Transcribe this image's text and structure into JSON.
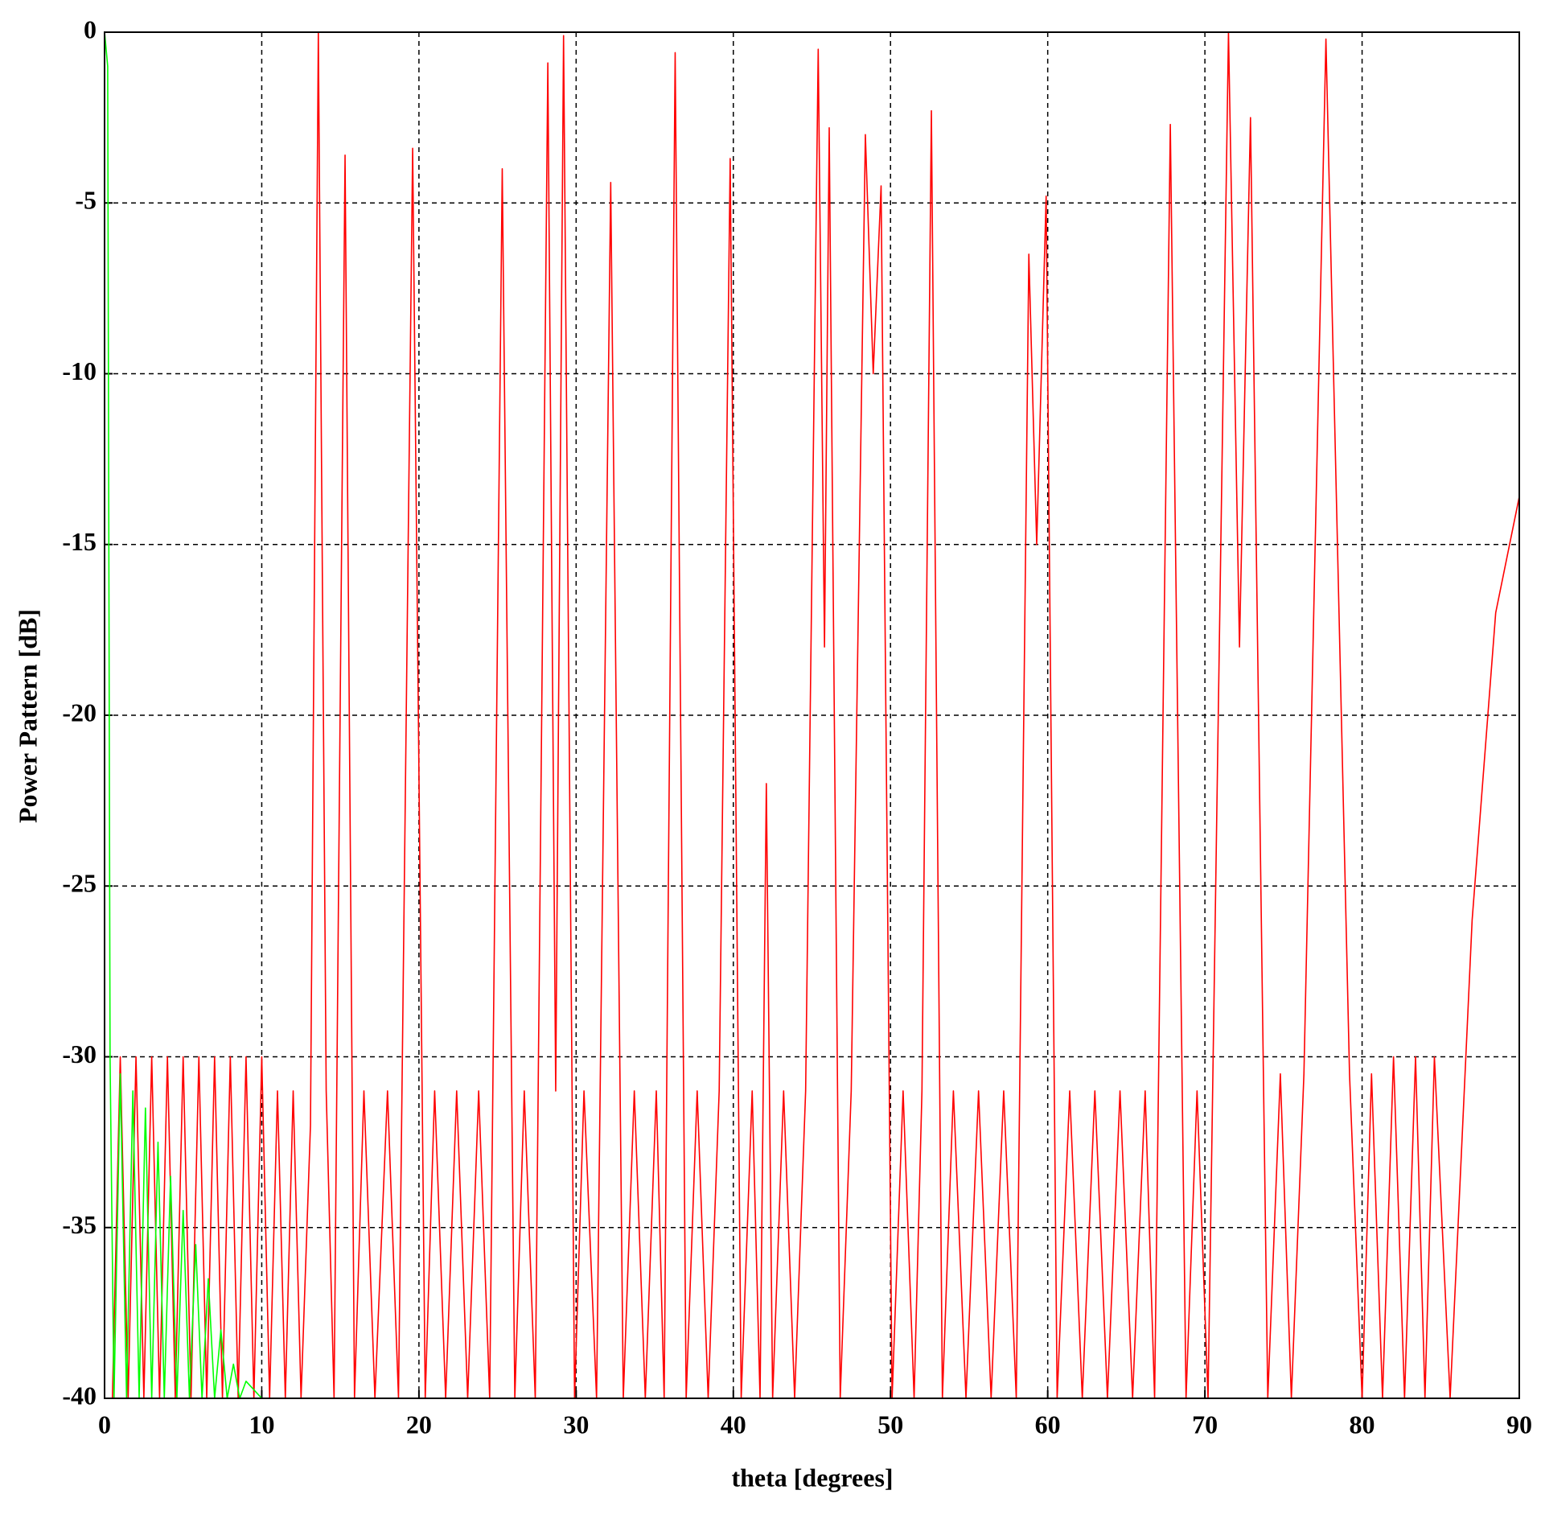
{
  "chart_data": {
    "type": "line",
    "x_label": "theta [degrees]",
    "y_label": "Power Pattern [dB]",
    "xlim": [
      0,
      90
    ],
    "xticks": [
      0,
      10,
      20,
      30,
      40,
      50,
      60,
      70,
      80,
      90
    ],
    "ylim": [
      -40,
      0
    ],
    "yticks": [
      0,
      -5,
      -10,
      -15,
      -20,
      -25,
      -30,
      -35,
      -40
    ],
    "grid": true,
    "series": [
      {
        "color": "#ff0000",
        "x": [
          0.5,
          1,
          1.5,
          2,
          2.5,
          3,
          3.5,
          4,
          4.5,
          5,
          5.5,
          6,
          6.5,
          7,
          7.5,
          8,
          8.5,
          9,
          9.5,
          10,
          10.5,
          11,
          11.5,
          12,
          12.5,
          13.1,
          13.6,
          14.1,
          14.6,
          15.3,
          15.9,
          16.5,
          17.2,
          18,
          18.7,
          19.6,
          20.4,
          21,
          21.7,
          22.4,
          23.1,
          23.8,
          24.5,
          25.3,
          26.1,
          26.7,
          27.4,
          28.2,
          28.7,
          29.2,
          29.9,
          30.5,
          31.3,
          32.2,
          33,
          33.7,
          34.4,
          35.1,
          35.6,
          36.3,
          37,
          37.7,
          38.4,
          39.1,
          39.8,
          40.5,
          41.2,
          41.7,
          42.1,
          42.5,
          43.2,
          43.9,
          44.6,
          45.4,
          45.8,
          46.1,
          46.8,
          47.5,
          48.4,
          48.9,
          49.4,
          50.1,
          50.8,
          51.5,
          52,
          52.6,
          53.3,
          54,
          54.8,
          55.6,
          56.4,
          57.2,
          58,
          58.8,
          59.3,
          59.9,
          60.6,
          61.4,
          62.2,
          63,
          63.8,
          64.6,
          65.4,
          66.2,
          66.8,
          67.8,
          68.8,
          69.5,
          70.2,
          71.5,
          72.2,
          72.9,
          74,
          74.8,
          75.5,
          76.3,
          77.7,
          79.2,
          80,
          80.6,
          81.3,
          82,
          82.7,
          83.4,
          84,
          84.6,
          85.6,
          87,
          88.5,
          90
        ],
        "values": [
          -40,
          -30,
          -40,
          -30,
          -40,
          -30,
          -40,
          -30,
          -40,
          -30,
          -40,
          -30,
          -40,
          -30,
          -40,
          -30,
          -40,
          -30,
          -40,
          -30,
          -40,
          -31,
          -40,
          -31,
          -40,
          -32,
          0,
          -31,
          -40,
          -3.6,
          -40,
          -31,
          -40,
          -31,
          -40,
          -3.4,
          -40,
          -31,
          -40,
          -31,
          -40,
          -31,
          -40,
          -4,
          -40,
          -31,
          -40,
          -0.9,
          -31,
          -0.1,
          -40,
          -31,
          -40,
          -4.4,
          -40,
          -31,
          -40,
          -31,
          -40,
          -0.6,
          -40,
          -31,
          -40,
          -31,
          -3.7,
          -40,
          -31,
          -40,
          -22,
          -40,
          -31,
          -40,
          -31,
          -0.5,
          -18,
          -2.8,
          -40,
          -31,
          -3,
          -10,
          -4.5,
          -40,
          -31,
          -40,
          -31,
          -2.3,
          -40,
          -31,
          -40,
          -31,
          -40,
          -31,
          -40,
          -6.5,
          -15,
          -4.8,
          -40,
          -31,
          -40,
          -31,
          -40,
          -31,
          -40,
          -31,
          -40,
          -2.7,
          -40,
          -31,
          -40,
          0,
          -18,
          -2.5,
          -40,
          -30.5,
          -40,
          -30.5,
          -0.2,
          -30.5,
          -40,
          -30.5,
          -40,
          -30,
          -40,
          -30,
          -40,
          -30,
          -40,
          -26,
          -17,
          -13.6
        ]
      },
      {
        "color": "#00ff00",
        "x": [
          0,
          0.2,
          0.35,
          0.6,
          1,
          1.4,
          1.8,
          2.2,
          2.6,
          3,
          3.4,
          3.8,
          4.2,
          4.6,
          5,
          5.4,
          5.8,
          6.2,
          6.6,
          7,
          7.4,
          7.8,
          8.2,
          8.6,
          9,
          10
        ],
        "values": [
          0,
          -1,
          -30,
          -40,
          -30.5,
          -40,
          -31,
          -40,
          -31.5,
          -40,
          -32.5,
          -40,
          -33.5,
          -40,
          -34.5,
          -40,
          -35.5,
          -40,
          -36.5,
          -40,
          -38,
          -40,
          -39,
          -40,
          -39.5,
          -40
        ]
      }
    ]
  }
}
